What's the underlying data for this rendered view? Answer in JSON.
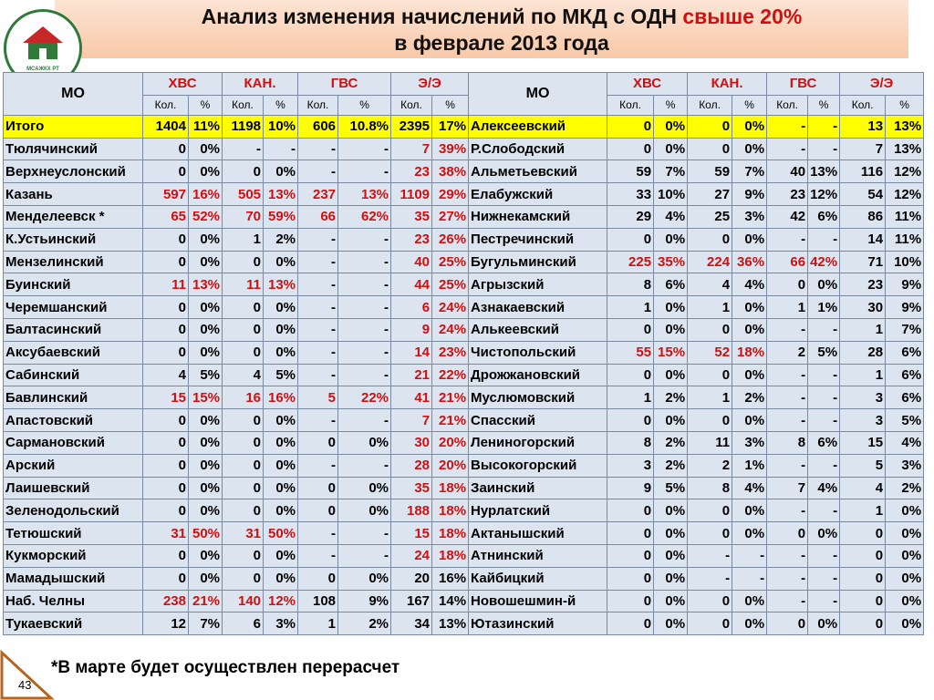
{
  "header": {
    "title_main": "Анализ изменения начислений по МКД с ОДН ",
    "title_highlight": "свыше 20%",
    "title_line2": "в феврале 2013 года",
    "logo_text": "МСАЖКХ РТ"
  },
  "table": {
    "mo": "МО",
    "groups": [
      "ХВС",
      "КАН.",
      "ГВС",
      "Э/Э"
    ],
    "sub": [
      "Кол.",
      "%"
    ],
    "rows": [
      {
        "left": [
          "Итого",
          "1404",
          "11%",
          "1198",
          "10%",
          "606",
          "10.8%",
          "2395",
          "17%"
        ],
        "right": [
          "Алексеевский",
          "0",
          "0%",
          "0",
          "0%",
          "-",
          "-",
          "13",
          "13%"
        ],
        "left_red": [],
        "right_red": [],
        "highlight": true
      },
      {
        "left": [
          "Тюлячинский",
          "0",
          "0%",
          "-",
          "-",
          "-",
          "-",
          "7",
          "39%"
        ],
        "right": [
          "Р.Слободский",
          "0",
          "0%",
          "0",
          "0%",
          "-",
          "-",
          "7",
          "13%"
        ],
        "left_red": [
          3
        ],
        "right_red": []
      },
      {
        "left": [
          "Верхнеуслонский",
          "0",
          "0%",
          "0",
          "0%",
          "-",
          "-",
          "23",
          "38%"
        ],
        "right": [
          "Альметьевский",
          "59",
          "7%",
          "59",
          "7%",
          "40",
          "13%",
          "116",
          "12%"
        ],
        "left_red": [
          3
        ],
        "right_red": []
      },
      {
        "left": [
          "Казань",
          "597",
          "16%",
          "505",
          "13%",
          "237",
          "13%",
          "1109",
          "29%"
        ],
        "right": [
          "Елабужский",
          "33",
          "10%",
          "27",
          "9%",
          "23",
          "12%",
          "54",
          "12%"
        ],
        "left_red": [
          0,
          1,
          2,
          3
        ],
        "right_red": []
      },
      {
        "left": [
          "Менделеевск *",
          "65",
          "52%",
          "70",
          "59%",
          "66",
          "62%",
          "35",
          "27%"
        ],
        "right": [
          "Нижнекамский",
          "29",
          "4%",
          "25",
          "3%",
          "42",
          "6%",
          "86",
          "11%"
        ],
        "left_red": [
          0,
          1,
          2,
          3
        ],
        "right_red": []
      },
      {
        "left": [
          "К.Устьинский",
          "0",
          "0%",
          "1",
          "2%",
          "-",
          "-",
          "23",
          "26%"
        ],
        "right": [
          "Пестречинский",
          "0",
          "0%",
          "0",
          "0%",
          "-",
          "-",
          "14",
          "11%"
        ],
        "left_red": [
          3
        ],
        "right_red": []
      },
      {
        "left": [
          "Мензелинский",
          "0",
          "0%",
          "0",
          "0%",
          "-",
          "-",
          "40",
          "25%"
        ],
        "right": [
          "Бугульминский",
          "225",
          "35%",
          "224",
          "36%",
          "66",
          "42%",
          "71",
          "10%"
        ],
        "left_red": [
          3
        ],
        "right_red": [
          0,
          1,
          2
        ]
      },
      {
        "left": [
          "Буинский",
          "11",
          "13%",
          "11",
          "13%",
          "-",
          "-",
          "44",
          "25%"
        ],
        "right": [
          "Агрызский",
          "8",
          "6%",
          "4",
          "4%",
          "0",
          "0%",
          "23",
          "9%"
        ],
        "left_red": [
          0,
          1,
          3
        ],
        "right_red": []
      },
      {
        "left": [
          "Черемшанский",
          "0",
          "0%",
          "0",
          "0%",
          "-",
          "-",
          "6",
          "24%"
        ],
        "right": [
          "Азнакаевский",
          "1",
          "0%",
          "1",
          "0%",
          "1",
          "1%",
          "30",
          "9%"
        ],
        "left_red": [
          3
        ],
        "right_red": []
      },
      {
        "left": [
          "Балтасинский",
          "0",
          "0%",
          "0",
          "0%",
          "-",
          "-",
          "9",
          "24%"
        ],
        "right": [
          "Алькеевский",
          "0",
          "0%",
          "0",
          "0%",
          "-",
          "-",
          "1",
          "7%"
        ],
        "left_red": [
          3
        ],
        "right_red": []
      },
      {
        "left": [
          "Аксубаевский",
          "0",
          "0%",
          "0",
          "0%",
          "-",
          "-",
          "14",
          "23%"
        ],
        "right": [
          "Чистопольский",
          "55",
          "15%",
          "52",
          "18%",
          "2",
          "5%",
          "28",
          "6%"
        ],
        "left_red": [
          3
        ],
        "right_red": [
          0,
          1
        ]
      },
      {
        "left": [
          "Сабинский",
          "4",
          "5%",
          "4",
          "5%",
          "-",
          "-",
          "21",
          "22%"
        ],
        "right": [
          "Дрожжановский",
          "0",
          "0%",
          "0",
          "0%",
          "-",
          "-",
          "1",
          "6%"
        ],
        "left_red": [
          3
        ],
        "right_red": []
      },
      {
        "left": [
          "Бавлинский",
          "15",
          "15%",
          "16",
          "16%",
          "5",
          "22%",
          "41",
          "21%"
        ],
        "right": [
          "Муслюмовский",
          "1",
          "2%",
          "1",
          "2%",
          "-",
          "-",
          "3",
          "6%"
        ],
        "left_red": [
          0,
          1,
          2,
          3
        ],
        "right_red": []
      },
      {
        "left": [
          "Апастовский",
          "0",
          "0%",
          "0",
          "0%",
          "-",
          "-",
          "7",
          "21%"
        ],
        "right": [
          "Спасский",
          "0",
          "0%",
          "0",
          "0%",
          "-",
          "-",
          "3",
          "5%"
        ],
        "left_red": [
          3
        ],
        "right_red": []
      },
      {
        "left": [
          "Сармановский",
          "0",
          "0%",
          "0",
          "0%",
          "0",
          "0%",
          "30",
          "20%"
        ],
        "right": [
          "Лениногорский",
          "8",
          "2%",
          "11",
          "3%",
          "8",
          "6%",
          "15",
          "4%"
        ],
        "left_red": [
          3
        ],
        "right_red": []
      },
      {
        "left": [
          "Арский",
          "0",
          "0%",
          "0",
          "0%",
          "-",
          "-",
          "28",
          "20%"
        ],
        "right": [
          "Высокогорский",
          "3",
          "2%",
          "2",
          "1%",
          "-",
          "-",
          "5",
          "3%"
        ],
        "left_red": [
          3
        ],
        "right_red": []
      },
      {
        "left": [
          "Лаишевский",
          "0",
          "0%",
          "0",
          "0%",
          "0",
          "0%",
          "35",
          "18%"
        ],
        "right": [
          "Заинский",
          "9",
          "5%",
          "8",
          "4%",
          "7",
          "4%",
          "4",
          "2%"
        ],
        "left_red": [
          3
        ],
        "right_red": []
      },
      {
        "left": [
          "Зеленодольский",
          "0",
          "0%",
          "0",
          "0%",
          "0",
          "0%",
          "188",
          "18%"
        ],
        "right": [
          "Нурлатский",
          "0",
          "0%",
          "0",
          "0%",
          "-",
          "-",
          "1",
          "0%"
        ],
        "left_red": [
          3
        ],
        "right_red": []
      },
      {
        "left": [
          "Тетюшский",
          "31",
          "50%",
          "31",
          "50%",
          "-",
          "-",
          "15",
          "18%"
        ],
        "right": [
          "Актанышский",
          "0",
          "0%",
          "0",
          "0%",
          "0",
          "0%",
          "0",
          "0%"
        ],
        "left_red": [
          0,
          1,
          3
        ],
        "right_red": []
      },
      {
        "left": [
          "Кукморский",
          "0",
          "0%",
          "0",
          "0%",
          "-",
          "-",
          "24",
          "18%"
        ],
        "right": [
          "Атнинский",
          "0",
          "0%",
          "-",
          "-",
          "-",
          "-",
          "0",
          "0%"
        ],
        "left_red": [
          3
        ],
        "right_red": []
      },
      {
        "left": [
          "Мамадышский",
          "0",
          "0%",
          "0",
          "0%",
          "0",
          "0%",
          "20",
          "16%"
        ],
        "right": [
          "Кайбицкий",
          "0",
          "0%",
          "-",
          "-",
          "-",
          "-",
          "0",
          "0%"
        ],
        "left_red": [],
        "right_red": []
      },
      {
        "left": [
          "Наб. Челны",
          "238",
          "21%",
          "140",
          "12%",
          "108",
          "9%",
          "167",
          "14%"
        ],
        "right": [
          "Новошешмин-й",
          "0",
          "0%",
          "0",
          "0%",
          "-",
          "-",
          "0",
          "0%"
        ],
        "left_red": [
          0,
          1
        ],
        "right_red": []
      },
      {
        "left": [
          "Тукаевский",
          "12",
          "7%",
          "6",
          "3%",
          "1",
          "2%",
          "34",
          "13%"
        ],
        "right": [
          "Ютазинский",
          "0",
          "0%",
          "0",
          "0%",
          "0",
          "0%",
          "0",
          "0%"
        ],
        "left_red": [],
        "right_red": []
      }
    ]
  },
  "footer": {
    "note": "*В марте будет осуществлен перерасчет",
    "page": "43"
  }
}
